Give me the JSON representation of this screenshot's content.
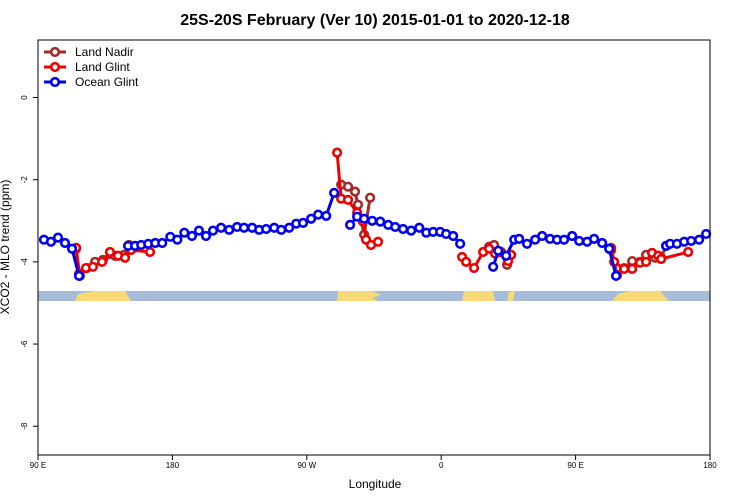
{
  "chart_data": {
    "type": "line",
    "title": "25S-20S February (Ver 10)   2015-01-01 to 2020-12-18",
    "x_label": "Longitude",
    "y_label": "XCO2 - MLO trend (ppm)",
    "xlim": [
      90,
      540
    ],
    "ylim": [
      -8.7,
      1.4
    ],
    "xticks": [
      {
        "value": 90,
        "label": "90 E"
      },
      {
        "value": 180,
        "label": "180"
      },
      {
        "value": 270,
        "label": "90 W"
      },
      {
        "value": 360,
        "label": "0"
      },
      {
        "value": 450,
        "label": "90 E"
      },
      {
        "value": 540,
        "label": "180"
      }
    ],
    "yticks": [
      0,
      -2,
      -4,
      -6,
      -8
    ],
    "legend": "top-left",
    "series": [
      {
        "name": "Land Nadir",
        "color": "#a52a2a",
        "x": [
          115.5,
          118.1,
          122.8,
          128.2,
          133.5,
          141.6,
          147.6,
          151.0,
          154.3,
          null,
          293.0,
          297.6,
          302.3,
          304.3,
          308.4,
          312.4,
          null,
          392.1,
          395.4,
          399.4,
          404.1,
          406.8,
          null,
          473.8,
          477.8,
          482.5,
          487.9,
          493.2,
          497.2,
          503.3,
          507.3,
          510.6
        ],
        "values": [
          -3.68,
          -4.34,
          -4.15,
          -4.0,
          -3.95,
          -3.85,
          -3.83,
          -3.59,
          -3.66,
          null,
          -2.12,
          -2.17,
          -2.29,
          -2.61,
          -3.34,
          -2.44,
          null,
          -3.63,
          -3.59,
          -3.76,
          -4.07,
          -3.83,
          null,
          -3.66,
          -4.32,
          -4.15,
          -3.98,
          -4.0,
          -3.83,
          -3.9,
          -3.9,
          -3.61
        ]
      },
      {
        "name": "Land Glint",
        "color": "#ee0000",
        "x": [
          115.5,
          117.5,
          122.1,
          126.8,
          132.9,
          138.2,
          143.6,
          148.3,
          152.3,
          165.0,
          null,
          290.3,
          293.0,
          297.6,
          303.7,
          307.7,
          309.7,
          313.0,
          317.7,
          null,
          374.0,
          376.7,
          382.0,
          388.1,
          392.1,
          396.1,
          400.1,
          404.8,
          406.8,
          null,
          473.8,
          475.8,
          482.5,
          487.9,
          493.2,
          497.2,
          501.2,
          505.3,
          507.3,
          525.4
        ],
        "values": [
          -3.66,
          -4.29,
          -4.15,
          -4.12,
          -4.0,
          -3.76,
          -3.85,
          -3.9,
          -3.71,
          -3.76,
          null,
          -1.34,
          -2.46,
          -2.49,
          -2.8,
          -3.02,
          -3.46,
          -3.59,
          -3.51,
          null,
          -3.88,
          -4.0,
          -4.15,
          -3.76,
          -3.68,
          -3.8,
          -3.76,
          -3.98,
          -3.83,
          null,
          -3.71,
          -4.0,
          -4.17,
          -4.17,
          -4.02,
          -4.0,
          -3.78,
          -3.85,
          -3.93,
          -3.76
        ]
      },
      {
        "name": "Ocean Glint",
        "color": "#0000ee",
        "x": [
          94.0,
          98.7,
          103.4,
          108.1,
          112.8,
          117.5,
          null,
          150.3,
          155.0,
          159.1,
          163.8,
          168.5,
          173.2,
          178.6,
          183.3,
          188.0,
          193.1,
          197.8,
          202.5,
          207.2,
          212.6,
          218.0,
          223.3,
          228.0,
          233.4,
          238.1,
          242.8,
          248.2,
          252.9,
          258.2,
          262.9,
          267.5,
          272.9,
          277.6,
          283.0,
          288.3,
          null,
          299.0,
          303.7,
          308.4,
          313.8,
          319.2,
          324.5,
          329.2,
          334.5,
          339.9,
          345.3,
          350.0,
          354.6,
          359.3,
          363.3,
          368.0,
          372.7,
          null,
          394.8,
          398.2,
          403.5,
          408.9,
          412.2,
          417.5,
          422.9,
          427.6,
          432.9,
          437.6,
          442.3,
          447.7,
          452.4,
          457.7,
          462.4,
          467.8,
          472.5,
          477.1,
          null,
          510.6,
          513.3,
          517.9,
          522.7,
          527.4,
          532.7,
          537.4
        ],
        "values": [
          -3.46,
          -3.51,
          -3.41,
          -3.54,
          -3.68,
          -4.34,
          null,
          -3.61,
          -3.61,
          -3.59,
          -3.56,
          -3.54,
          -3.54,
          -3.39,
          -3.46,
          -3.29,
          -3.37,
          -3.24,
          -3.37,
          -3.24,
          -3.17,
          -3.22,
          -3.15,
          -3.17,
          -3.17,
          -3.22,
          -3.2,
          -3.17,
          -3.22,
          -3.17,
          -3.07,
          -3.05,
          -2.95,
          -2.85,
          -2.88,
          -2.32,
          null,
          -3.1,
          -2.9,
          -2.95,
          -3.0,
          -3.02,
          -3.1,
          -3.15,
          -3.2,
          -3.24,
          -3.17,
          -3.29,
          -3.27,
          -3.27,
          -3.32,
          -3.37,
          -3.56,
          null,
          -4.12,
          -3.73,
          -3.85,
          -3.46,
          -3.44,
          -3.56,
          -3.46,
          -3.37,
          -3.44,
          -3.46,
          -3.46,
          -3.37,
          -3.49,
          -3.51,
          -3.44,
          -3.54,
          -3.68,
          -4.34,
          null,
          -3.61,
          -3.56,
          -3.56,
          -3.51,
          -3.49,
          -3.46,
          -3.32
        ]
      }
    ]
  }
}
